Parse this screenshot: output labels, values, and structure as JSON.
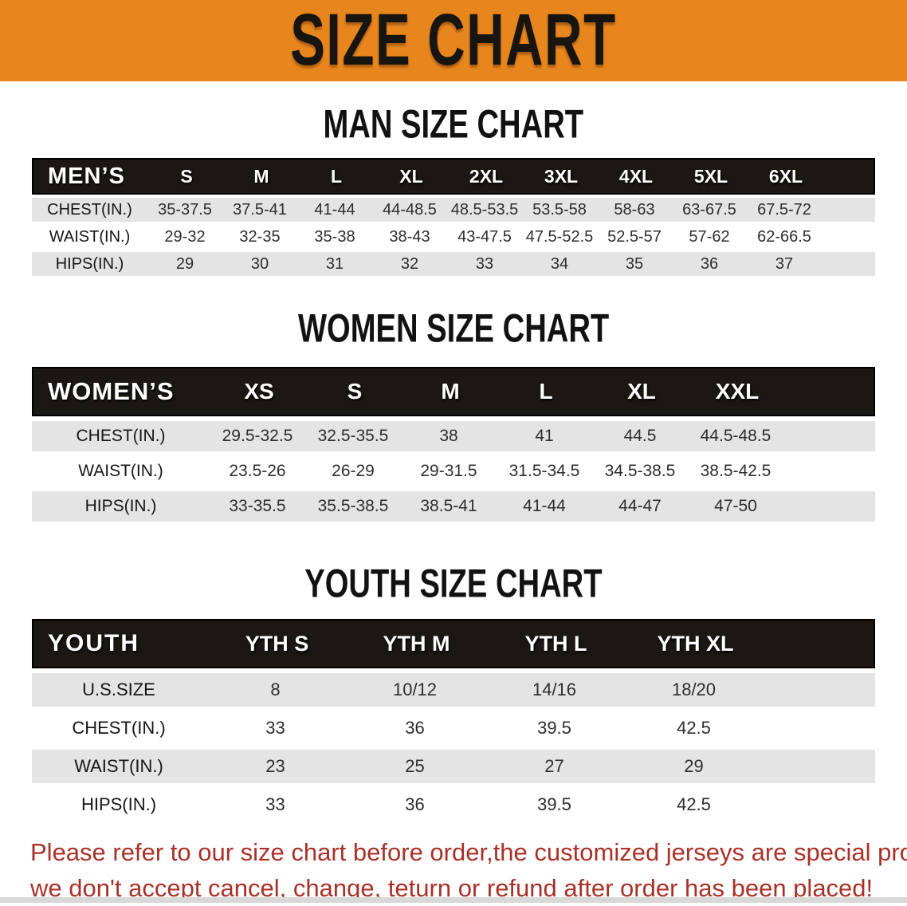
{
  "banner": {
    "title": "SIZE CHART",
    "bg_color": "#E8861E",
    "text_color": "#181410"
  },
  "colors": {
    "table_header_bg": "#1b1713",
    "row_alt_bg": "#E4E4E4",
    "disclaimer_text": "#A93128"
  },
  "sections": [
    {
      "id": "man",
      "title": "MAN SIZE CHART",
      "header_label": "MEN’S",
      "columns": [
        "S",
        "M",
        "L",
        "XL",
        "2XL",
        "3XL",
        "4XL",
        "5XL",
        "6XL"
      ],
      "rows": [
        {
          "label": "CHEST(IN.)",
          "values": [
            "35-37.5",
            "37.5-41",
            "41-44",
            "44-48.5",
            "48.5-53.5",
            "53.5-58",
            "58-63",
            "63-67.5",
            "67.5-72"
          ]
        },
        {
          "label": "WAIST(IN.)",
          "values": [
            "29-32",
            "32-35",
            "35-38",
            "38-43",
            "43-47.5",
            "47.5-52.5",
            "52.5-57",
            "57-62",
            "62-66.5"
          ]
        },
        {
          "label": "HIPS(IN.)",
          "values": [
            "29",
            "30",
            "31",
            "32",
            "33",
            "34",
            "35",
            "36",
            "37"
          ]
        }
      ]
    },
    {
      "id": "women",
      "title": "WOMEN SIZE CHART",
      "header_label": "WOMEN’S",
      "columns": [
        "XS",
        "S",
        "M",
        "L",
        "XL",
        "XXL"
      ],
      "rows": [
        {
          "label": "CHEST(IN.)",
          "values": [
            "29.5-32.5",
            "32.5-35.5",
            "38",
            "41",
            "44.5",
            "44.5-48.5"
          ]
        },
        {
          "label": "WAIST(IN.)",
          "values": [
            "23.5-26",
            "26-29",
            "29-31.5",
            "31.5-34.5",
            "34.5-38.5",
            "38.5-42.5"
          ]
        },
        {
          "label": "HIPS(IN.)",
          "values": [
            "33-35.5",
            "35.5-38.5",
            "38.5-41",
            "41-44",
            "44-47",
            "47-50"
          ]
        }
      ]
    },
    {
      "id": "youth",
      "title": "YOUTH SIZE CHART",
      "header_label": "YOUTH",
      "columns": [
        "YTH S",
        "YTH M",
        "YTH L",
        "YTH XL"
      ],
      "rows": [
        {
          "label": "U.S.SIZE",
          "values": [
            "8",
            "10/12",
            "14/16",
            "18/20"
          ]
        },
        {
          "label": "CHEST(IN.)",
          "values": [
            "33",
            "36",
            "39.5",
            "42.5"
          ]
        },
        {
          "label": "WAIST(IN.)",
          "values": [
            "23",
            "25",
            "27",
            "29"
          ]
        },
        {
          "label": "HIPS(IN.)",
          "values": [
            "33",
            "36",
            "39.5",
            "42.5"
          ]
        }
      ]
    }
  ],
  "disclaimer": {
    "lines": [
      "Please refer to our size chart before order,the customized jerseys are special products,",
      "we don't accept cancel, change, teturn or refund after order has been placed!"
    ]
  }
}
